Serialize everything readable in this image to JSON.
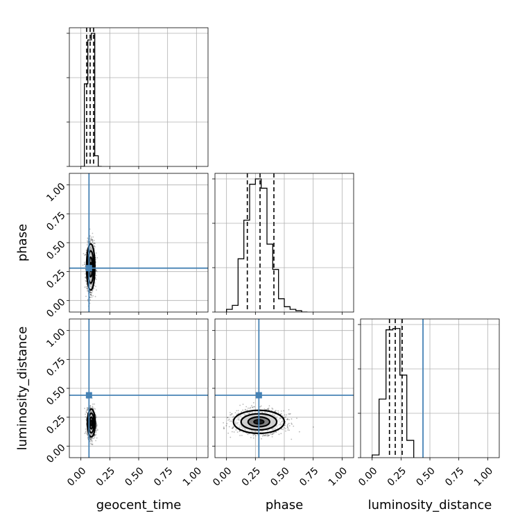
{
  "chart_data": {
    "type": "corner",
    "parameters": [
      "geocent_time",
      "phase",
      "luminosity_distance"
    ],
    "axis_range": [
      -0.1,
      1.1
    ],
    "ticks": [
      0.0,
      0.25,
      0.5,
      0.75,
      1.0
    ],
    "tick_labels": [
      "0.00",
      "0.25",
      "0.50",
      "0.75",
      "1.00"
    ],
    "grid": true,
    "colors": {
      "truth": "#4682b4",
      "hist": "#000000",
      "grid": "#b0b0b0"
    },
    "truths": {
      "geocent_time": 0.07,
      "phase": 0.28,
      "luminosity_distance": 0.44
    },
    "quantiles": {
      "geocent_time": [
        0.05,
        0.08,
        0.11
      ],
      "phase": [
        0.18,
        0.29,
        0.41
      ],
      "luminosity_distance": [
        0.15,
        0.2,
        0.26
      ]
    },
    "histograms": {
      "geocent_time": {
        "edges": [
          0.0,
          0.03,
          0.06,
          0.09,
          0.12,
          0.15,
          0.18
        ],
        "counts": [
          0,
          0.62,
          0.95,
          1.0,
          0.08,
          0.0
        ]
      },
      "phase": {
        "edges": [
          0.0,
          0.05,
          0.1,
          0.15,
          0.2,
          0.25,
          0.3,
          0.35,
          0.4,
          0.45,
          0.5,
          0.55,
          0.6,
          0.65,
          0.7
        ],
        "counts": [
          0.02,
          0.05,
          0.4,
          0.69,
          0.96,
          1.0,
          0.93,
          0.51,
          0.32,
          0.1,
          0.04,
          0.02,
          0.01,
          0.0
        ]
      },
      "luminosity_distance": {
        "edges": [
          0.0,
          0.06,
          0.12,
          0.18,
          0.24,
          0.3,
          0.36
        ],
        "counts": [
          0.02,
          0.44,
          0.96,
          0.97,
          0.62,
          0.13
        ]
      }
    },
    "panels_2d": [
      {
        "x": "geocent_time",
        "y": "phase",
        "center": [
          0.085,
          0.29
        ],
        "sigma": [
          0.018,
          0.1
        ]
      },
      {
        "x": "geocent_time",
        "y": "luminosity_distance",
        "center": [
          0.09,
          0.2
        ],
        "sigma": [
          0.017,
          0.06
        ]
      },
      {
        "x": "phase",
        "y": "luminosity_distance",
        "center": [
          0.28,
          0.21
        ],
        "sigma": [
          0.11,
          0.05
        ]
      }
    ]
  }
}
